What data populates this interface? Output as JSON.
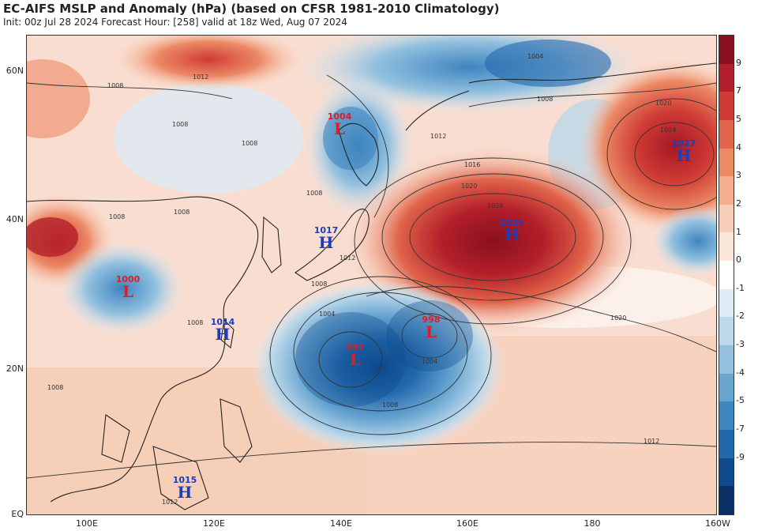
{
  "header": {
    "title": "EC-AIFS MSLP and Anomaly (hPa) (based on CFSR 1981-2010 Climatology)",
    "subtitle": "Init: 00z Jul 28 2024   Forecast Hour: [258]   valid at 18z Wed, Aug 07 2024"
  },
  "axes": {
    "lat_labels": [
      "60N",
      "40N",
      "20N",
      "EQ"
    ],
    "lon_labels": [
      "100E",
      "120E",
      "140E",
      "160E",
      "180",
      "160W"
    ]
  },
  "colorbar": {
    "labels": [
      "9",
      "7",
      "5",
      "4",
      "3",
      "2",
      "1",
      "0",
      "-1",
      "-2",
      "-3",
      "-4",
      "-5",
      "-7",
      "-9"
    ],
    "colors": [
      "#8a0f1f",
      "#b31f2a",
      "#cf3b34",
      "#e0644a",
      "#ec8a66",
      "#f4ad8d",
      "#f8cdb6",
      "#fbe6da",
      "#ffffff",
      "#dcebf4",
      "#bcd8ea",
      "#93c1df",
      "#68a5d1",
      "#3f85c0",
      "#2168ad",
      "#0f4a8c",
      "#0a2f66"
    ]
  },
  "systems": [
    {
      "type": "L",
      "value": "1004",
      "color": "#d6202a"
    },
    {
      "type": "H",
      "value": "1027",
      "color": "#1b3fb8"
    },
    {
      "type": "H",
      "value": "1025",
      "color": "#1b3fb8"
    },
    {
      "type": "H",
      "value": "1017",
      "color": "#1b3fb8"
    },
    {
      "type": "L",
      "value": "1000",
      "color": "#d6202a"
    },
    {
      "type": "H",
      "value": "1014",
      "color": "#1b3fb8"
    },
    {
      "type": "L",
      "value": "998",
      "color": "#d6202a"
    },
    {
      "type": "L",
      "value": "997",
      "color": "#d6202a"
    },
    {
      "type": "H",
      "value": "1015",
      "color": "#1b3fb8"
    }
  ],
  "isobar_labels": [
    "1008",
    "1012",
    "1008",
    "1008",
    "1008",
    "1004",
    "1008",
    "1012",
    "1016",
    "1020",
    "1024",
    "1020",
    "1024",
    "1012",
    "1008",
    "1004",
    "1004",
    "1008",
    "1020",
    "1012",
    "1008",
    "1008",
    "1008",
    "1012",
    "1008"
  ]
}
